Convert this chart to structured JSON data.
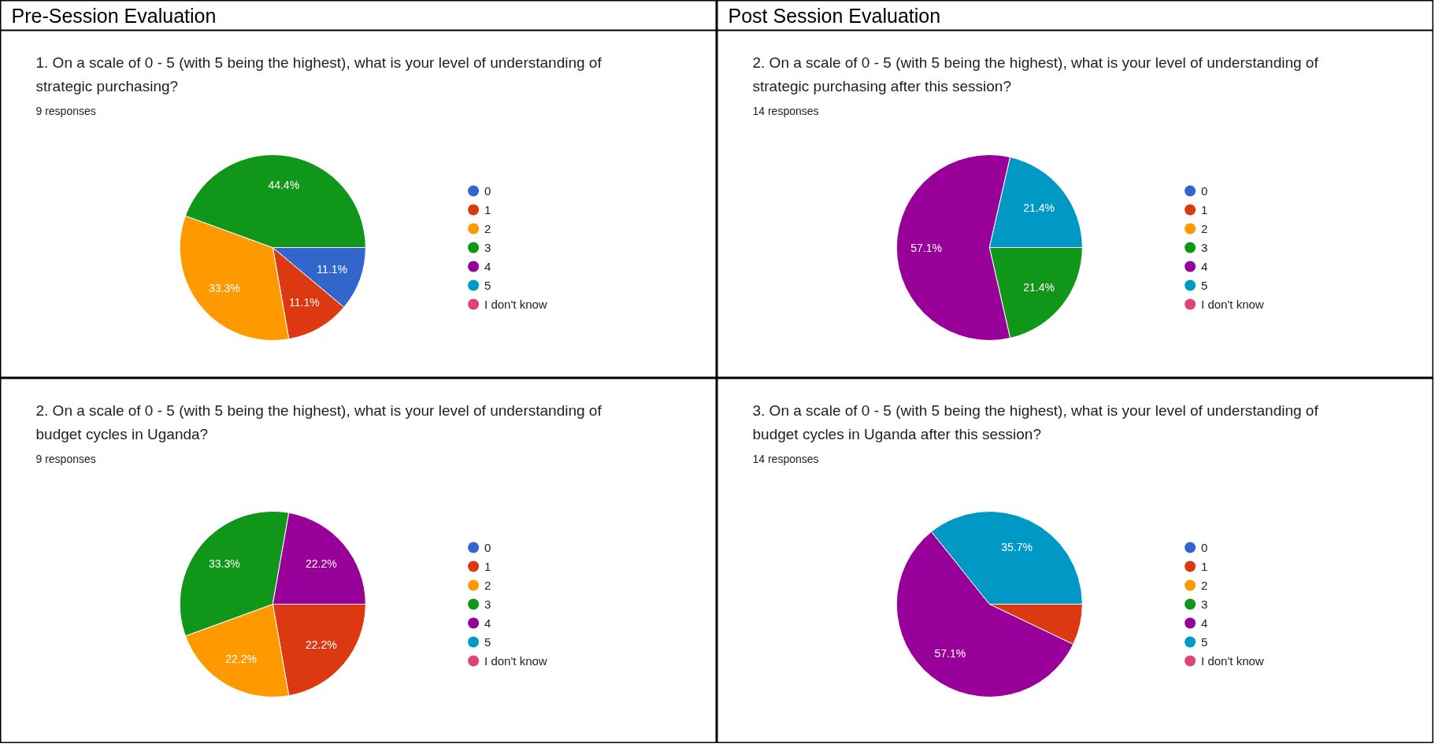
{
  "chart_data": [
    {
      "type": "pie",
      "annotations": [
        "Pre-Session Evaluation"
      ],
      "title": "1. On a scale of 0 - 5 (with 5 being the highest), what is your level of understanding of strategic purchasing?",
      "subtitle": "9 responses",
      "categories": [
        "0",
        "1",
        "2",
        "3",
        "4",
        "5",
        "I don't know"
      ],
      "values": [
        11.1,
        11.1,
        33.3,
        44.4,
        0,
        0,
        0
      ],
      "value_labels": [
        "11.1%",
        "11.1%",
        "33.3%",
        "44.4%",
        null,
        null,
        null
      ],
      "colors": [
        "#3366cc",
        "#dc3912",
        "#ff9900",
        "#109618",
        "#990099",
        "#0099c6",
        "#dd4477"
      ],
      "legend": "right"
    },
    {
      "type": "pie",
      "annotations": [
        "Post Session Evaluation"
      ],
      "title": "2. On a scale of 0 - 5 (with 5 being the highest), what is your level of understanding of strategic purchasing after this session?",
      "subtitle": "14 responses",
      "categories": [
        "0",
        "1",
        "2",
        "3",
        "4",
        "5",
        "I don't know"
      ],
      "values": [
        0,
        0,
        0,
        21.4,
        57.1,
        21.4,
        0
      ],
      "value_labels": [
        null,
        null,
        null,
        "21.4%",
        "57.1%",
        "21.4%",
        null
      ],
      "colors": [
        "#3366cc",
        "#dc3912",
        "#ff9900",
        "#109618",
        "#990099",
        "#0099c6",
        "#dd4477"
      ],
      "legend": "right"
    },
    {
      "type": "pie",
      "title": "2. On a scale of 0 - 5 (with 5 being the highest), what is your level of understanding of budget cycles in Uganda?",
      "subtitle": "9 responses",
      "categories": [
        "0",
        "1",
        "2",
        "3",
        "4",
        "5",
        "I don't know"
      ],
      "values": [
        0,
        22.2,
        22.2,
        33.3,
        22.2,
        0,
        0
      ],
      "value_labels": [
        null,
        "22.2%",
        "22.2%",
        "33.3%",
        "22.2%",
        null,
        null
      ],
      "colors": [
        "#3366cc",
        "#dc3912",
        "#ff9900",
        "#109618",
        "#990099",
        "#0099c6",
        "#dd4477"
      ],
      "legend": "right"
    },
    {
      "type": "pie",
      "title": "3. On a scale of 0 - 5 (with 5 being the highest), what is your level of understanding of budget cycles in Uganda after this session?",
      "subtitle": "14 responses",
      "categories": [
        "0",
        "1",
        "2",
        "3",
        "4",
        "5",
        "I don't know"
      ],
      "values": [
        0,
        7.1,
        0,
        0,
        57.1,
        35.7,
        0
      ],
      "value_labels": [
        null,
        null,
        null,
        null,
        "57.1%",
        "35.7%",
        null
      ],
      "colors": [
        "#3366cc",
        "#dc3912",
        "#ff9900",
        "#109618",
        "#990099",
        "#0099c6",
        "#dd4477"
      ],
      "legend": "right"
    }
  ]
}
